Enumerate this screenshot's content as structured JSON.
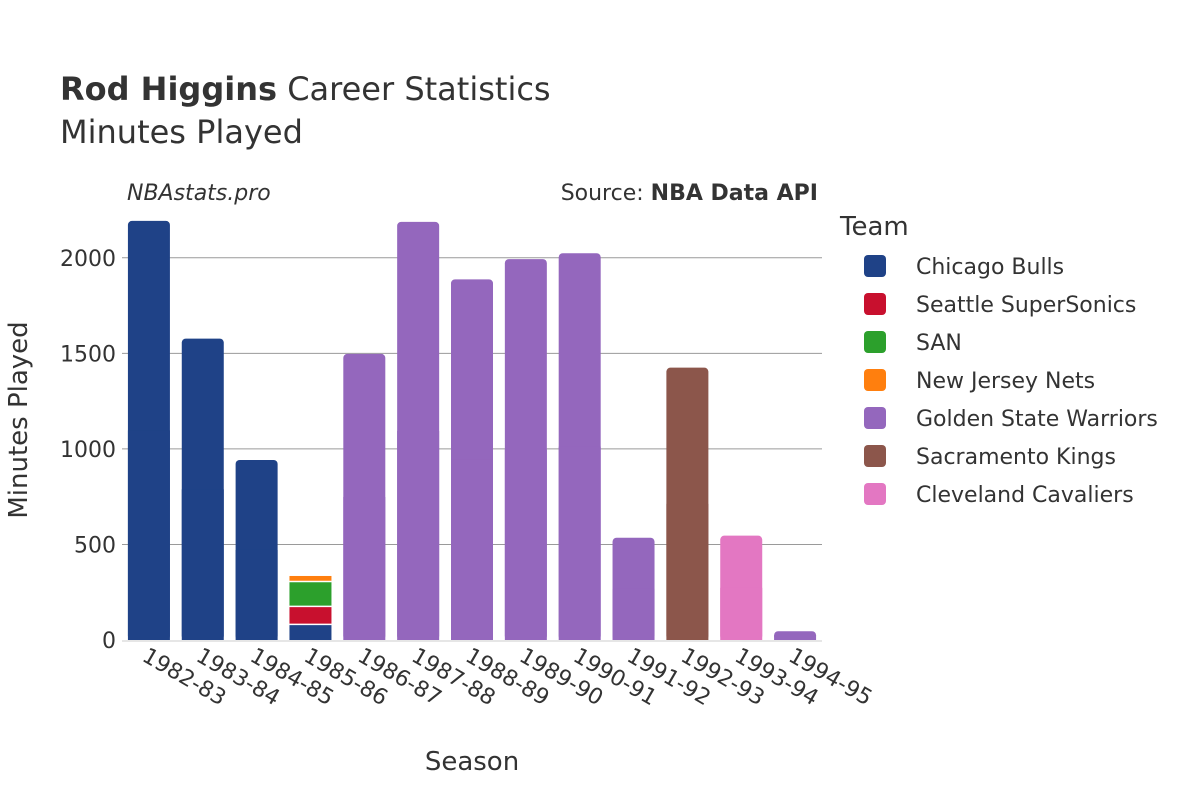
{
  "header": {
    "title_bold": "Rod Higgins",
    "title_rest": " Career Statistics",
    "subtitle": "Minutes Played"
  },
  "watermark": "NBAstats.pro",
  "source": {
    "prefix": "Source: ",
    "name": "NBA Data API"
  },
  "chart_data": {
    "type": "bar",
    "stacked": true,
    "xlabel": "Season",
    "ylabel": "Minutes Played",
    "ylim": [
      0,
      2250
    ],
    "yticks": [
      0,
      500,
      1000,
      1500,
      2000
    ],
    "grid": true,
    "legend_title": "Team",
    "legend_position": "right",
    "categories": [
      "1982-83",
      "1983-84",
      "1984-85",
      "1985-86",
      "1986-87",
      "1987-88",
      "1988-89",
      "1989-90",
      "1990-91",
      "1991-92",
      "1992-93",
      "1993-94",
      "1994-95"
    ],
    "series": [
      {
        "name": "Chicago Bulls",
        "color": "#1f4287",
        "values": [
          2193,
          1577,
          942,
          82,
          0,
          0,
          0,
          0,
          0,
          0,
          0,
          0,
          0
        ]
      },
      {
        "name": "Seattle SuperSonics",
        "color": "#c8102e",
        "values": [
          0,
          0,
          0,
          94,
          0,
          0,
          0,
          0,
          0,
          0,
          0,
          0,
          0
        ]
      },
      {
        "name": "SAN",
        "color": "#2ca02c",
        "values": [
          0,
          0,
          0,
          130,
          0,
          0,
          0,
          0,
          0,
          0,
          0,
          0,
          0
        ]
      },
      {
        "name": "New Jersey Nets",
        "color": "#ff7f0e",
        "values": [
          0,
          0,
          0,
          29,
          0,
          0,
          0,
          0,
          0,
          0,
          0,
          0,
          0
        ]
      },
      {
        "name": "Golden State Warriors",
        "color": "#9467bd",
        "values": [
          0,
          0,
          0,
          0,
          1497,
          2188,
          1887,
          1993,
          2024,
          535,
          0,
          0,
          46
        ]
      },
      {
        "name": "Sacramento Kings",
        "color": "#8c564b",
        "values": [
          0,
          0,
          0,
          0,
          0,
          0,
          0,
          0,
          0,
          0,
          1425,
          0,
          0
        ]
      },
      {
        "name": "Cleveland Cavaliers",
        "color": "#e377c2",
        "values": [
          0,
          0,
          0,
          0,
          0,
          0,
          0,
          0,
          0,
          0,
          0,
          546,
          0
        ]
      }
    ]
  }
}
